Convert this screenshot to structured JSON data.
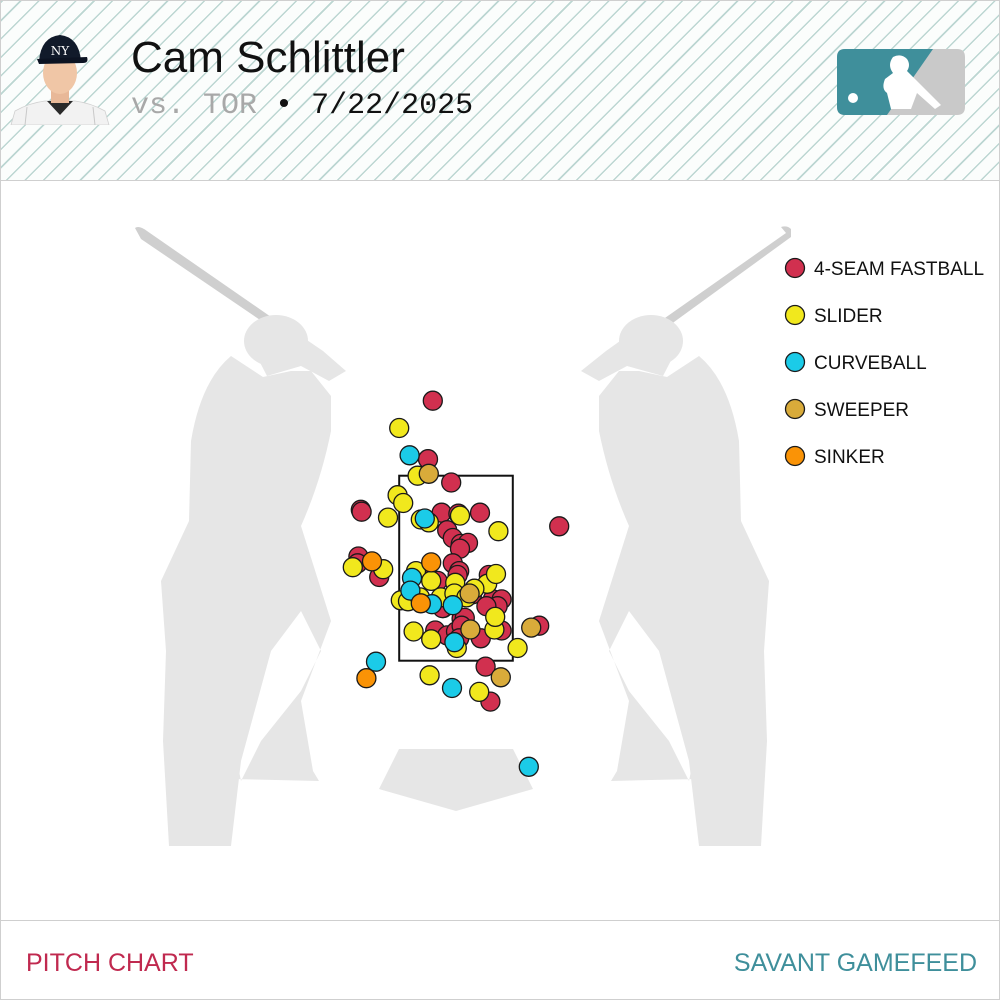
{
  "header": {
    "player_name": "Cam Schlittler",
    "opponent": "vs. TOR",
    "separator": "•",
    "date": "7/22/2025"
  },
  "footer": {
    "left_label": "PITCH CHART",
    "right_label": "SAVANT GAMEFEED"
  },
  "colors": {
    "fastball": "#d1304f",
    "slider": "#f1e81d",
    "curveball": "#1bcbe8",
    "sweeper": "#d9ab3a",
    "sinker": "#fa9306",
    "footer_left": "#c0294f",
    "footer_right": "#3f8f9b",
    "logo": "#3f8f9b"
  },
  "icons": [
    "player-headshot-icon",
    "mlb-logo-icon",
    "batter-silhouette-icon",
    "home-plate-icon"
  ],
  "chart_data": {
    "type": "scatter",
    "title": "",
    "xlabel": "",
    "ylabel": "",
    "xlim": [
      -2.5,
      2.5
    ],
    "ylim": [
      -0.2,
      5.2
    ],
    "grid": false,
    "legend_position": "top-right",
    "strike_zone": {
      "x": [
        -0.71,
        0.71
      ],
      "y": [
        1.6,
        3.5
      ]
    },
    "series": [
      {
        "name": "4-SEAM FASTBALL",
        "color": "#d1304f",
        "points": [
          [
            -0.29,
            4.27
          ],
          [
            -0.35,
            3.67
          ],
          [
            -0.06,
            3.43
          ],
          [
            -1.19,
            3.15
          ],
          [
            -1.18,
            3.13
          ],
          [
            -0.18,
            3.12
          ],
          [
            0.03,
            3.11
          ],
          [
            0.3,
            3.12
          ],
          [
            1.29,
            2.98
          ],
          [
            -0.11,
            2.94
          ],
          [
            -0.04,
            2.86
          ],
          [
            -1.22,
            2.67
          ],
          [
            -1.23,
            2.6
          ],
          [
            0.06,
            2.8
          ],
          [
            0.15,
            2.81
          ],
          [
            0.05,
            2.75
          ],
          [
            -0.96,
            2.46
          ],
          [
            -0.36,
            2.49
          ],
          [
            -0.23,
            2.42
          ],
          [
            0.41,
            2.48
          ],
          [
            -0.04,
            2.6
          ],
          [
            0.04,
            2.52
          ],
          [
            0.02,
            2.48
          ],
          [
            0.2,
            2.28
          ],
          [
            0.46,
            2.23
          ],
          [
            0.57,
            2.23
          ],
          [
            0.52,
            2.16
          ],
          [
            0.38,
            2.16
          ],
          [
            -0.16,
            2.14
          ],
          [
            -0.17,
            2.14
          ],
          [
            0.07,
            2.03
          ],
          [
            0.11,
            2.04
          ],
          [
            1.04,
            1.96
          ],
          [
            -0.26,
            1.91
          ],
          [
            -0.11,
            1.86
          ],
          [
            0.57,
            1.91
          ],
          [
            0.31,
            1.83
          ],
          [
            0.0,
            1.9
          ],
          [
            0.37,
            1.54
          ],
          [
            0.43,
            1.18
          ],
          [
            0.07,
            1.96
          ],
          [
            0.04,
            1.83
          ]
        ]
      },
      {
        "name": "SLIDER",
        "color": "#f1e81d",
        "points": [
          [
            -0.71,
            3.99
          ],
          [
            -0.48,
            3.5
          ],
          [
            -0.73,
            3.3
          ],
          [
            -0.66,
            3.22
          ],
          [
            -0.85,
            3.07
          ],
          [
            0.53,
            2.93
          ],
          [
            0.05,
            3.09
          ],
          [
            -0.44,
            3.05
          ],
          [
            -0.34,
            3.02
          ],
          [
            -1.29,
            2.56
          ],
          [
            -0.91,
            2.54
          ],
          [
            -0.5,
            2.52
          ],
          [
            -0.31,
            2.42
          ],
          [
            -0.01,
            2.4
          ],
          [
            0.39,
            2.39
          ],
          [
            0.5,
            2.49
          ],
          [
            -0.69,
            2.22
          ],
          [
            -0.19,
            2.25
          ],
          [
            -0.02,
            2.29
          ],
          [
            0.13,
            2.25
          ],
          [
            0.23,
            2.34
          ],
          [
            -0.6,
            2.21
          ],
          [
            -0.45,
            2.25
          ],
          [
            -0.53,
            1.9
          ],
          [
            -0.31,
            1.82
          ],
          [
            0.01,
            1.73
          ],
          [
            0.48,
            1.92
          ],
          [
            0.77,
            1.73
          ],
          [
            -0.33,
            1.45
          ],
          [
            0.29,
            1.28
          ],
          [
            0.49,
            2.05
          ]
        ]
      },
      {
        "name": "CURVEBALL",
        "color": "#1bcbe8",
        "points": [
          [
            -0.58,
            3.71
          ],
          [
            -0.39,
            3.06
          ],
          [
            -0.55,
            2.45
          ],
          [
            -0.57,
            2.32
          ],
          [
            -0.3,
            2.18
          ],
          [
            -0.04,
            2.17
          ],
          [
            -0.02,
            1.79
          ],
          [
            -1.0,
            1.59
          ],
          [
            -0.05,
            1.32
          ],
          [
            0.91,
            0.51
          ]
        ]
      },
      {
        "name": "SWEEPER",
        "color": "#d9ab3a",
        "points": [
          [
            -0.34,
            3.52
          ],
          [
            0.17,
            2.29
          ],
          [
            0.18,
            1.92
          ],
          [
            0.94,
            1.94
          ],
          [
            0.56,
            1.43
          ]
        ]
      },
      {
        "name": "SINKER",
        "color": "#fa9306",
        "points": [
          [
            -1.05,
            2.62
          ],
          [
            -0.31,
            2.61
          ],
          [
            -0.44,
            2.19
          ],
          [
            -1.12,
            1.42
          ]
        ]
      }
    ]
  },
  "legend": {
    "items": [
      {
        "label": "4-SEAM FASTBALL",
        "color": "#d1304f"
      },
      {
        "label": "SLIDER",
        "color": "#f1e81d"
      },
      {
        "label": "CURVEBALL",
        "color": "#1bcbe8"
      },
      {
        "label": "SWEEPER",
        "color": "#d9ab3a"
      },
      {
        "label": "SINKER",
        "color": "#fa9306"
      }
    ]
  }
}
